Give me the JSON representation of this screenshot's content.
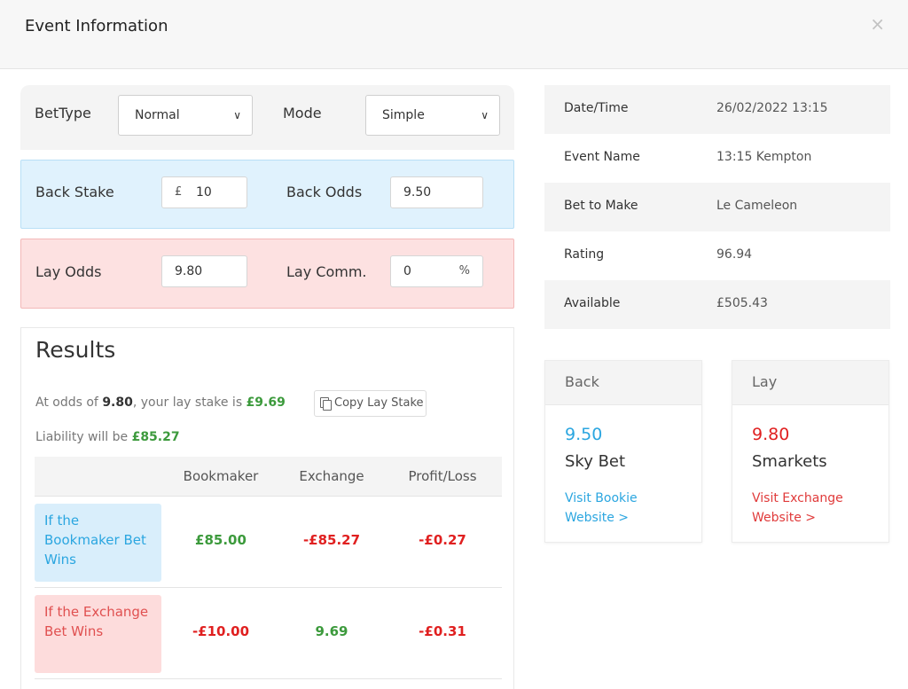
{
  "header": {
    "title": "Event Information",
    "close_label": "×"
  },
  "calculator": {
    "bet_type_label": "BetType",
    "bet_type_value": "Normal",
    "mode_label": "Mode",
    "mode_value": "Simple",
    "back_stake_label": "Back Stake",
    "back_stake_prefix": "£",
    "back_stake_value": "10",
    "back_odds_label": "Back Odds",
    "back_odds_value": "9.50",
    "lay_odds_label": "Lay Odds",
    "lay_odds_value": "9.80",
    "lay_comm_label": "Lay Comm.",
    "lay_comm_value": "0",
    "lay_comm_suffix": "%"
  },
  "results": {
    "title": "Results",
    "line1_prefix": "At odds of ",
    "line1_odds": "9.80",
    "line1_middle": ", your lay stake is ",
    "line1_stake": "£9.69",
    "copy_label": "Copy Lay Stake",
    "line2_prefix": "Liability will be ",
    "line2_value": "£85.27",
    "columns": [
      "Bookmaker",
      "Exchange",
      "Profit/Loss"
    ],
    "rows": [
      {
        "label": "If the Bookmaker Bet Wins",
        "bookmaker": "£85.00",
        "exchange": "-£85.27",
        "profit": "-£0.27"
      },
      {
        "label": "If the Exchange Bet Wins",
        "bookmaker": "-£10.00",
        "exchange": "9.69",
        "profit": "-£0.31"
      }
    ]
  },
  "info": {
    "rows": [
      {
        "key": "Date/Time",
        "value": "26/02/2022 13:15"
      },
      {
        "key": "Event Name",
        "value": "13:15 Kempton"
      },
      {
        "key": "Bet to Make",
        "value": "Le Cameleon"
      },
      {
        "key": "Rating",
        "value": "96.94"
      },
      {
        "key": "Available",
        "value": "£505.43"
      }
    ]
  },
  "back_card": {
    "heading": "Back",
    "odds": "9.50",
    "name": "Sky Bet",
    "link": "Visit Bookie Website >"
  },
  "lay_card": {
    "heading": "Lay",
    "odds": "9.80",
    "name": "Smarkets",
    "link": "Visit Exchange Website >"
  },
  "colors": {
    "green": "#3c9a3c",
    "red": "#e02020",
    "blue": "#2ba6e0",
    "back_bg": "#e0f2fd",
    "lay_bg": "#fde1e1"
  }
}
